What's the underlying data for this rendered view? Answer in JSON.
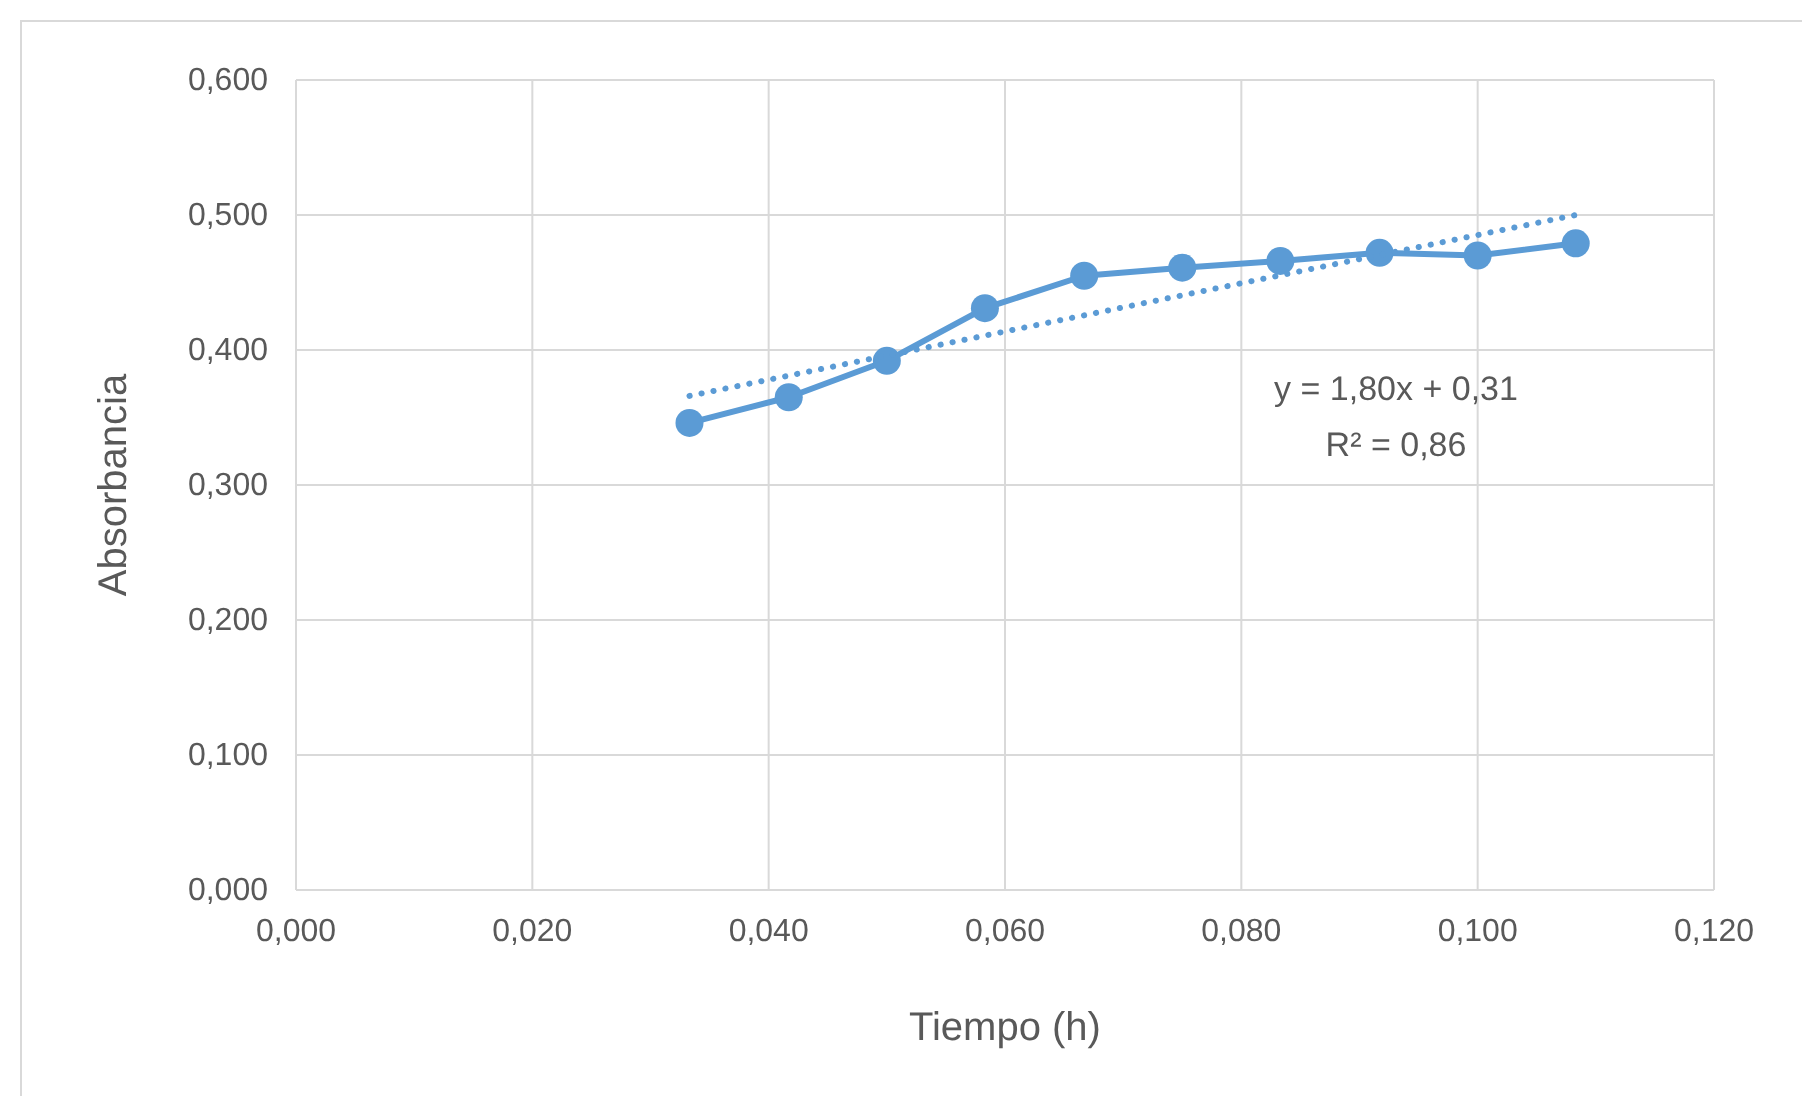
{
  "chart_data": {
    "type": "line",
    "xlabel": "Tiempo (h)",
    "ylabel": "Absorbancia",
    "xlim": [
      0,
      0.12
    ],
    "xticks": [
      {
        "value": 0,
        "label": "0,000"
      },
      {
        "value": 0.02,
        "label": "0,020"
      },
      {
        "value": 0.04,
        "label": "0,040"
      },
      {
        "value": 0.06,
        "label": "0,060"
      },
      {
        "value": 0.08,
        "label": "0,080"
      },
      {
        "value": 0.1,
        "label": "0,100"
      },
      {
        "value": 0.12,
        "label": "0,120"
      }
    ],
    "ylim": [
      0,
      0.6
    ],
    "yticks": [
      {
        "value": 0,
        "label": "0,000"
      },
      {
        "value": 0.1,
        "label": "0,100"
      },
      {
        "value": 0.2,
        "label": "0,200"
      },
      {
        "value": 0.3,
        "label": "0,300"
      },
      {
        "value": 0.4,
        "label": "0,400"
      },
      {
        "value": 0.5,
        "label": "0,500"
      },
      {
        "value": 0.6,
        "label": "0,600"
      }
    ],
    "grid": true,
    "series": [
      {
        "color": "#5b9bd5",
        "marker": "circle",
        "line_style": "solid",
        "x": [
          0.0333,
          0.0417,
          0.05,
          0.0583,
          0.0667,
          0.075,
          0.0833,
          0.0917,
          0.1,
          0.1083
        ],
        "values": [
          0.346,
          0.365,
          0.392,
          0.431,
          0.455,
          0.461,
          0.466,
          0.472,
          0.47,
          0.479
        ]
      },
      {
        "color": "#5b9bd5",
        "marker": "none",
        "line_style": "dotted",
        "x": [
          0.0333,
          0.1083
        ],
        "values": [
          0.366,
          0.5
        ]
      }
    ],
    "annotations": [
      "y = 1,80x + 0,31",
      "R² = 0,86"
    ]
  }
}
